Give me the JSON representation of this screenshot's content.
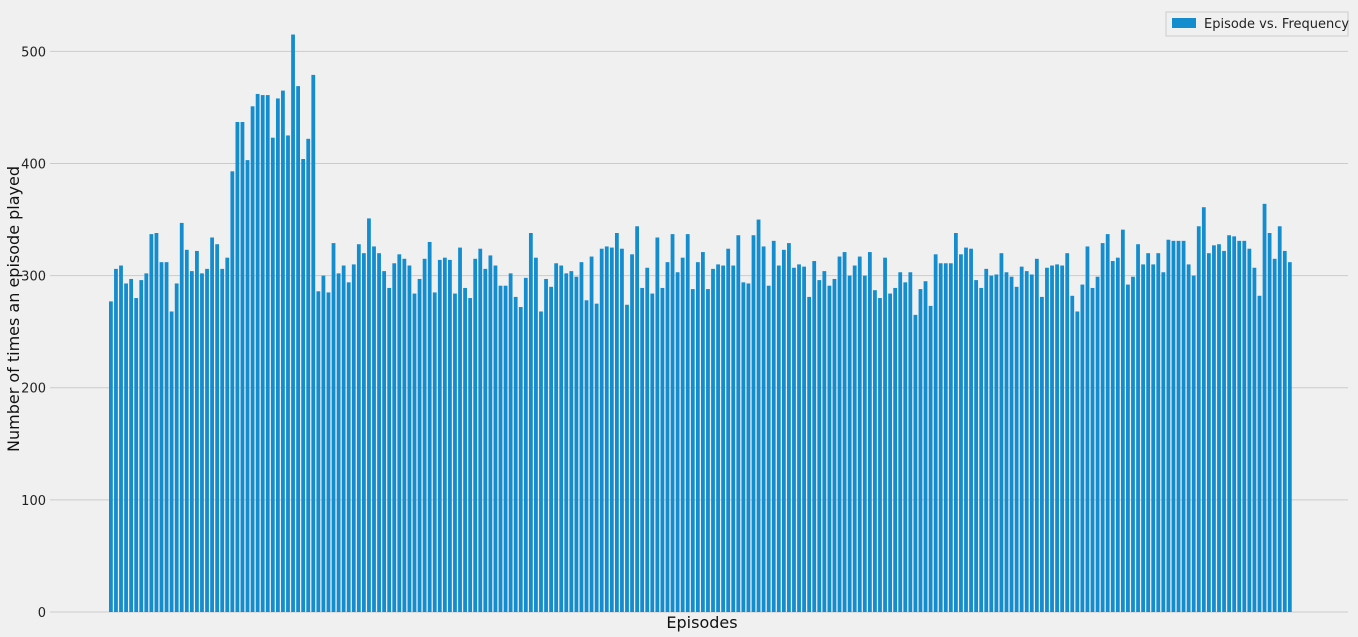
{
  "chart_data": {
    "type": "bar",
    "title": "",
    "xlabel": "Episodes",
    "ylabel": "Number of times an episode played",
    "ylim": [
      0,
      550
    ],
    "yticks": [
      0,
      100,
      200,
      300,
      400,
      500
    ],
    "x_tick_labels_shown": false,
    "grid": "horizontal",
    "legend": {
      "position": "top-right",
      "entries": [
        "Episode vs. Frequency"
      ]
    },
    "colors": {
      "bar": "#148dcf",
      "background": "#f0f0f0",
      "grid": "#cbcbcb"
    },
    "series": [
      {
        "name": "Episode vs. Frequency",
        "values": [
          277,
          306,
          309,
          293,
          297,
          280,
          296,
          302,
          337,
          338,
          312,
          312,
          268,
          293,
          347,
          323,
          304,
          322,
          302,
          306,
          334,
          328,
          306,
          316,
          393,
          437,
          437,
          403,
          451,
          462,
          461,
          461,
          423,
          458,
          465,
          425,
          515,
          469,
          404,
          422,
          479,
          286,
          300,
          285,
          329,
          302,
          309,
          294,
          310,
          328,
          320,
          351,
          326,
          320,
          304,
          289,
          311,
          319,
          315,
          309,
          284,
          297,
          315,
          330,
          285,
          314,
          316,
          314,
          284,
          325,
          289,
          280,
          315,
          324,
          306,
          318,
          309,
          291,
          291,
          302,
          281,
          272,
          298,
          338,
          316,
          268,
          297,
          290,
          311,
          309,
          302,
          304,
          299,
          312,
          278,
          317,
          275,
          324,
          326,
          325,
          338,
          324,
          274,
          319,
          344,
          289,
          307,
          284,
          334,
          289,
          312,
          337,
          303,
          316,
          337,
          288,
          312,
          321,
          288,
          306,
          310,
          309,
          324,
          309,
          336,
          294,
          293,
          336,
          350,
          326,
          291,
          331,
          309,
          323,
          329,
          307,
          310,
          308,
          281,
          313,
          296,
          304,
          291,
          297,
          317,
          321,
          300,
          309,
          317,
          300,
          321,
          287,
          280,
          316,
          284,
          289,
          303,
          294,
          303,
          265,
          288,
          295,
          273,
          319,
          311,
          311,
          311,
          338,
          319,
          325,
          324,
          296,
          289,
          306,
          300,
          301,
          320,
          303,
          299,
          290,
          308,
          304,
          301,
          315,
          281,
          307,
          309,
          310,
          309,
          320,
          282,
          268,
          292,
          326,
          289,
          299,
          329,
          337,
          313,
          316,
          341,
          292,
          299,
          328,
          310,
          320,
          310,
          320,
          303,
          332,
          331,
          331,
          331,
          310,
          300,
          344,
          361,
          320,
          327,
          328,
          322,
          336,
          335,
          331,
          331,
          324,
          307,
          282,
          364,
          338,
          315,
          344,
          322,
          312
        ]
      }
    ]
  }
}
